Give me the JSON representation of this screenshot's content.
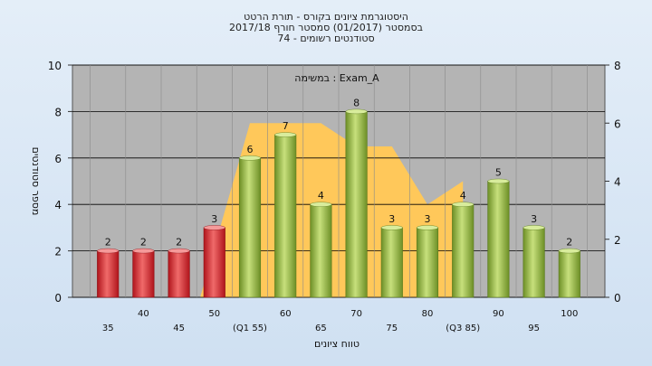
{
  "chart_data": {
    "type": "bar",
    "title": [
      "היסטוגרמת ציונים בקורס - תורת הרטט",
      "בסמסטר  (01/2017)  סמסטר חורף 2017/18",
      "סטודנטים רשומים - 74"
    ],
    "annotation": "במשימה : Exam_A",
    "xlabel": "טווח ציונים",
    "ylabel": "מספר סטודנטים",
    "ylim": [
      0,
      10
    ],
    "yticks": [
      0,
      2,
      4,
      6,
      8,
      10
    ],
    "y2lim": [
      0,
      8
    ],
    "y2ticks": [
      0,
      2,
      4,
      6,
      8
    ],
    "grid": true,
    "categories": [
      "35",
      "40",
      "45",
      "50",
      "(Q1 55)",
      "60",
      "65",
      "70",
      "75",
      "80",
      "(Q3 85)",
      "90",
      "95",
      "100"
    ],
    "values": [
      2,
      2,
      2,
      3,
      6,
      7,
      4,
      8,
      3,
      3,
      4,
      5,
      3,
      2
    ],
    "bar_colors": [
      "red",
      "red",
      "red",
      "red",
      "green",
      "green",
      "green",
      "green",
      "green",
      "green",
      "green",
      "green",
      "green",
      "green"
    ],
    "area_series": {
      "x": [
        48,
        55,
        60,
        65,
        70,
        75,
        80,
        85
      ],
      "values": [
        0,
        6,
        6,
        6,
        5.2,
        5.2,
        3.2,
        4.0
      ]
    },
    "colors": {
      "bar_red": "#e0262e",
      "bar_green": "#9cc04a",
      "area": "#ffc85a",
      "plot_bg": "#b4b4b4",
      "grid": "#000000"
    }
  }
}
